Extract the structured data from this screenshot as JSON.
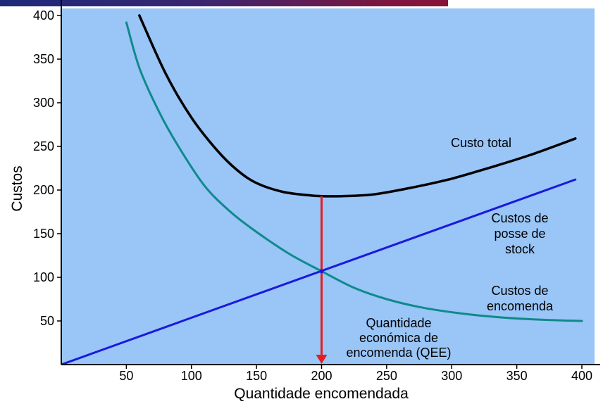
{
  "chart_data": {
    "type": "line",
    "xlabel": "Quantidade encomendada",
    "ylabel": "Custos",
    "xlim": [
      0,
      400
    ],
    "ylim": [
      0,
      400
    ],
    "x_ticks": [
      50,
      100,
      150,
      200,
      250,
      300,
      350,
      400
    ],
    "y_ticks": [
      50,
      100,
      150,
      200,
      250,
      300,
      350,
      400
    ],
    "grid": false,
    "colors": {
      "plot_background": "#99c5f7",
      "total": "#000000",
      "holding": "#1a1adc",
      "ordering": "#0f8a8a",
      "eoq_arrow": "#e02020"
    },
    "series": [
      {
        "id": "total",
        "name": "Custo total",
        "points": [
          [
            60,
            400
          ],
          [
            80,
            334
          ],
          [
            100,
            283
          ],
          [
            120,
            245
          ],
          [
            135,
            223
          ],
          [
            150,
            208
          ],
          [
            170,
            198
          ],
          [
            190,
            194
          ],
          [
            200,
            193
          ],
          [
            215,
            193
          ],
          [
            240,
            195
          ],
          [
            270,
            203
          ],
          [
            300,
            213
          ],
          [
            330,
            226
          ],
          [
            360,
            240
          ],
          [
            395,
            259
          ]
        ]
      },
      {
        "id": "holding",
        "name": "Custos de posse de stock",
        "points": [
          [
            0,
            0
          ],
          [
            395,
            212
          ]
        ]
      },
      {
        "id": "ordering",
        "name": "Custos de encomenda",
        "points": [
          [
            50,
            392
          ],
          [
            60,
            340
          ],
          [
            75,
            290
          ],
          [
            90,
            250
          ],
          [
            110,
            205
          ],
          [
            130,
            175
          ],
          [
            150,
            152
          ],
          [
            175,
            127
          ],
          [
            200,
            107
          ],
          [
            225,
            88
          ],
          [
            250,
            75
          ],
          [
            275,
            66
          ],
          [
            300,
            60
          ],
          [
            330,
            55
          ],
          [
            360,
            52
          ],
          [
            400,
            50
          ]
        ]
      }
    ],
    "annotations": {
      "total": "Custo total",
      "holding": [
        "Custos de",
        "posse de",
        "stock"
      ],
      "ordering": [
        "Custos de",
        "encomenda"
      ],
      "eoq": [
        "Quantidade",
        "económica de",
        "encomenda (QEE)"
      ]
    },
    "eoq": {
      "x": 200,
      "y_top": 193,
      "y_bottom": 0
    }
  }
}
